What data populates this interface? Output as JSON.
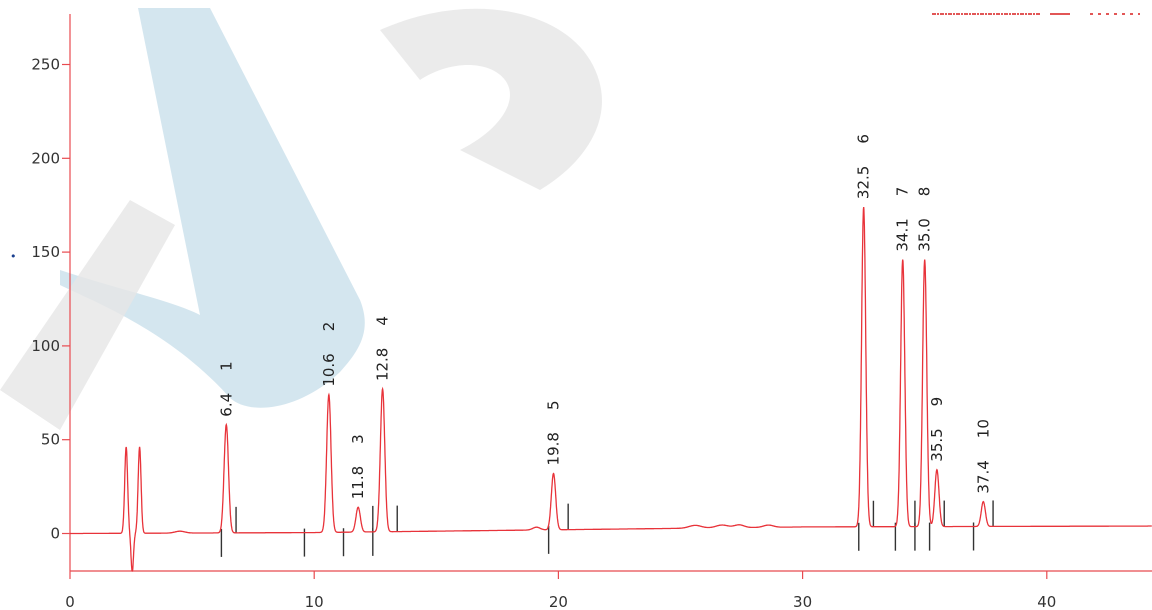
{
  "colors": {
    "trace": "#e8333a",
    "axis": "#e84a4f",
    "marker": "#333333",
    "watermark_blue": "#c5dde9",
    "watermark_gray": "#e6e6e6",
    "legend_red": "#d81e1e"
  },
  "chart_data": {
    "type": "line",
    "title": "",
    "xlabel": "",
    "ylabel": "",
    "xlim": [
      0,
      45
    ],
    "ylim": [
      -20,
      275
    ],
    "x_ticks": [
      "0",
      "10",
      "20",
      "30",
      "40"
    ],
    "y_ticks": [
      "0",
      "50",
      "100",
      "150",
      "200",
      "250"
    ],
    "baseline": [
      [
        0,
        0
      ],
      [
        10,
        0.5
      ],
      [
        20,
        2
      ],
      [
        30,
        3.5
      ],
      [
        45,
        4
      ]
    ],
    "system_peaks": [
      {
        "rt": 2.3,
        "height": 46
      },
      {
        "rt": 2.85,
        "height": 46
      }
    ],
    "solvent_dip": {
      "rt": 2.55,
      "depth": -20
    },
    "peaks": [
      {
        "id": "1",
        "rt": "6.4",
        "height": 58
      },
      {
        "id": "2",
        "rt": "10.6",
        "height": 74
      },
      {
        "id": "3",
        "rt": "11.8",
        "height": 14
      },
      {
        "id": "4",
        "rt": "12.8",
        "height": 77
      },
      {
        "id": "5",
        "rt": "19.8",
        "height": 32
      },
      {
        "id": "6",
        "rt": "32.5",
        "height": 174
      },
      {
        "id": "7",
        "rt": "34.1",
        "height": 146
      },
      {
        "id": "8",
        "rt": "35.0",
        "height": 146
      },
      {
        "id": "9",
        "rt": "35.5",
        "height": 34
      },
      {
        "id": "10",
        "rt": "37.4",
        "height": 17
      }
    ],
    "integration_marks": [
      {
        "t": 6.2,
        "dir": "down"
      },
      {
        "t": 6.8,
        "dir": "up"
      },
      {
        "t": 9.6,
        "dir": "down"
      },
      {
        "t": 11.2,
        "dir": "down"
      },
      {
        "t": 12.4,
        "dir": "up"
      },
      {
        "t": 12.4,
        "dir": "down"
      },
      {
        "t": 13.4,
        "dir": "up"
      },
      {
        "t": 19.6,
        "dir": "down"
      },
      {
        "t": 20.4,
        "dir": "up"
      },
      {
        "t": 32.3,
        "dir": "down"
      },
      {
        "t": 32.9,
        "dir": "up"
      },
      {
        "t": 33.8,
        "dir": "down"
      },
      {
        "t": 34.6,
        "dir": "up"
      },
      {
        "t": 34.6,
        "dir": "down"
      },
      {
        "t": 35.2,
        "dir": "down"
      },
      {
        "t": 35.8,
        "dir": "up"
      },
      {
        "t": 37.0,
        "dir": "down"
      },
      {
        "t": 37.8,
        "dir": "up"
      }
    ],
    "grid": false,
    "legend": "top-right"
  }
}
